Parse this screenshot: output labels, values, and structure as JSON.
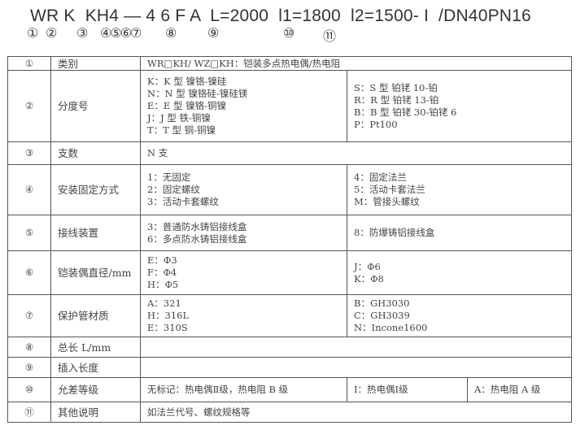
{
  "code": "WR K  KH4 — 4 6 F A  L=2000  l1=1800  l2=1500- I  /DN40PN16",
  "markers": [
    "①",
    "②",
    "③",
    "④⑤⑥⑦",
    "⑧",
    "⑨",
    "⑩",
    "⑪"
  ],
  "rows": [
    {
      "no": "①",
      "label": "类别",
      "cells": [
        "WR□KH/ WZ□KH：铠装多点热电偶/热电阻"
      ]
    },
    {
      "no": "②",
      "label": "分度号",
      "cells": [
        "K：K 型 镍铬-镍硅\nN：N 型 镍铬硅-镍硅镁\nE：E 型 镍铬-铜镍\nJ：J 型 铁-铜镍\nT：T 型 铜-铜镍",
        "S：S 型 铂铑 10-铂\nR：R 型 铂铑 13-铂\nB：B 型 铂铑 30-铂铑 6\nP：Pt100"
      ]
    },
    {
      "no": "③",
      "label": "支数",
      "cells": [
        "N 支"
      ]
    },
    {
      "no": "④",
      "label": "安装固定方式",
      "cells": [
        "1：无固定\n2：固定螺纹\n3：活动卡套螺纹",
        "4：固定法兰\n5：活动卡套法兰\nM：管接头螺纹"
      ]
    },
    {
      "no": "⑤",
      "label": "接线装置",
      "cells": [
        "3：普通防水铸铝接线盒\n6：多点防水铸铝接线盒",
        "8：防爆铸铝接线盒"
      ]
    },
    {
      "no": "⑥",
      "label": "铠装偶直径/mm",
      "cells": [
        "E：Φ3\nF：Φ4\nH：Φ5",
        "J：Φ6\nK：Φ8"
      ]
    },
    {
      "no": "⑦",
      "label": "保护管材质",
      "cells": [
        "A：321\nH：316L\nE：310S",
        "B：GH3030\nC：GH3039\nN：Incone1600"
      ]
    },
    {
      "no": "⑧",
      "label": "总长 L/mm",
      "cells": [
        ""
      ]
    },
    {
      "no": "⑨",
      "label": "插入长度",
      "cells": [
        ""
      ]
    },
    {
      "no": "⑩",
      "label": "允差等级",
      "cells": [
        "无标记：热电偶Ⅱ级，热电阻 B 级",
        "Ⅰ：热电偶Ⅰ级",
        "A：热电阻 A 级"
      ]
    },
    {
      "no": "⑪",
      "label": "其他说明",
      "cells": [
        "如法兰代号、螺纹规格等"
      ]
    }
  ]
}
